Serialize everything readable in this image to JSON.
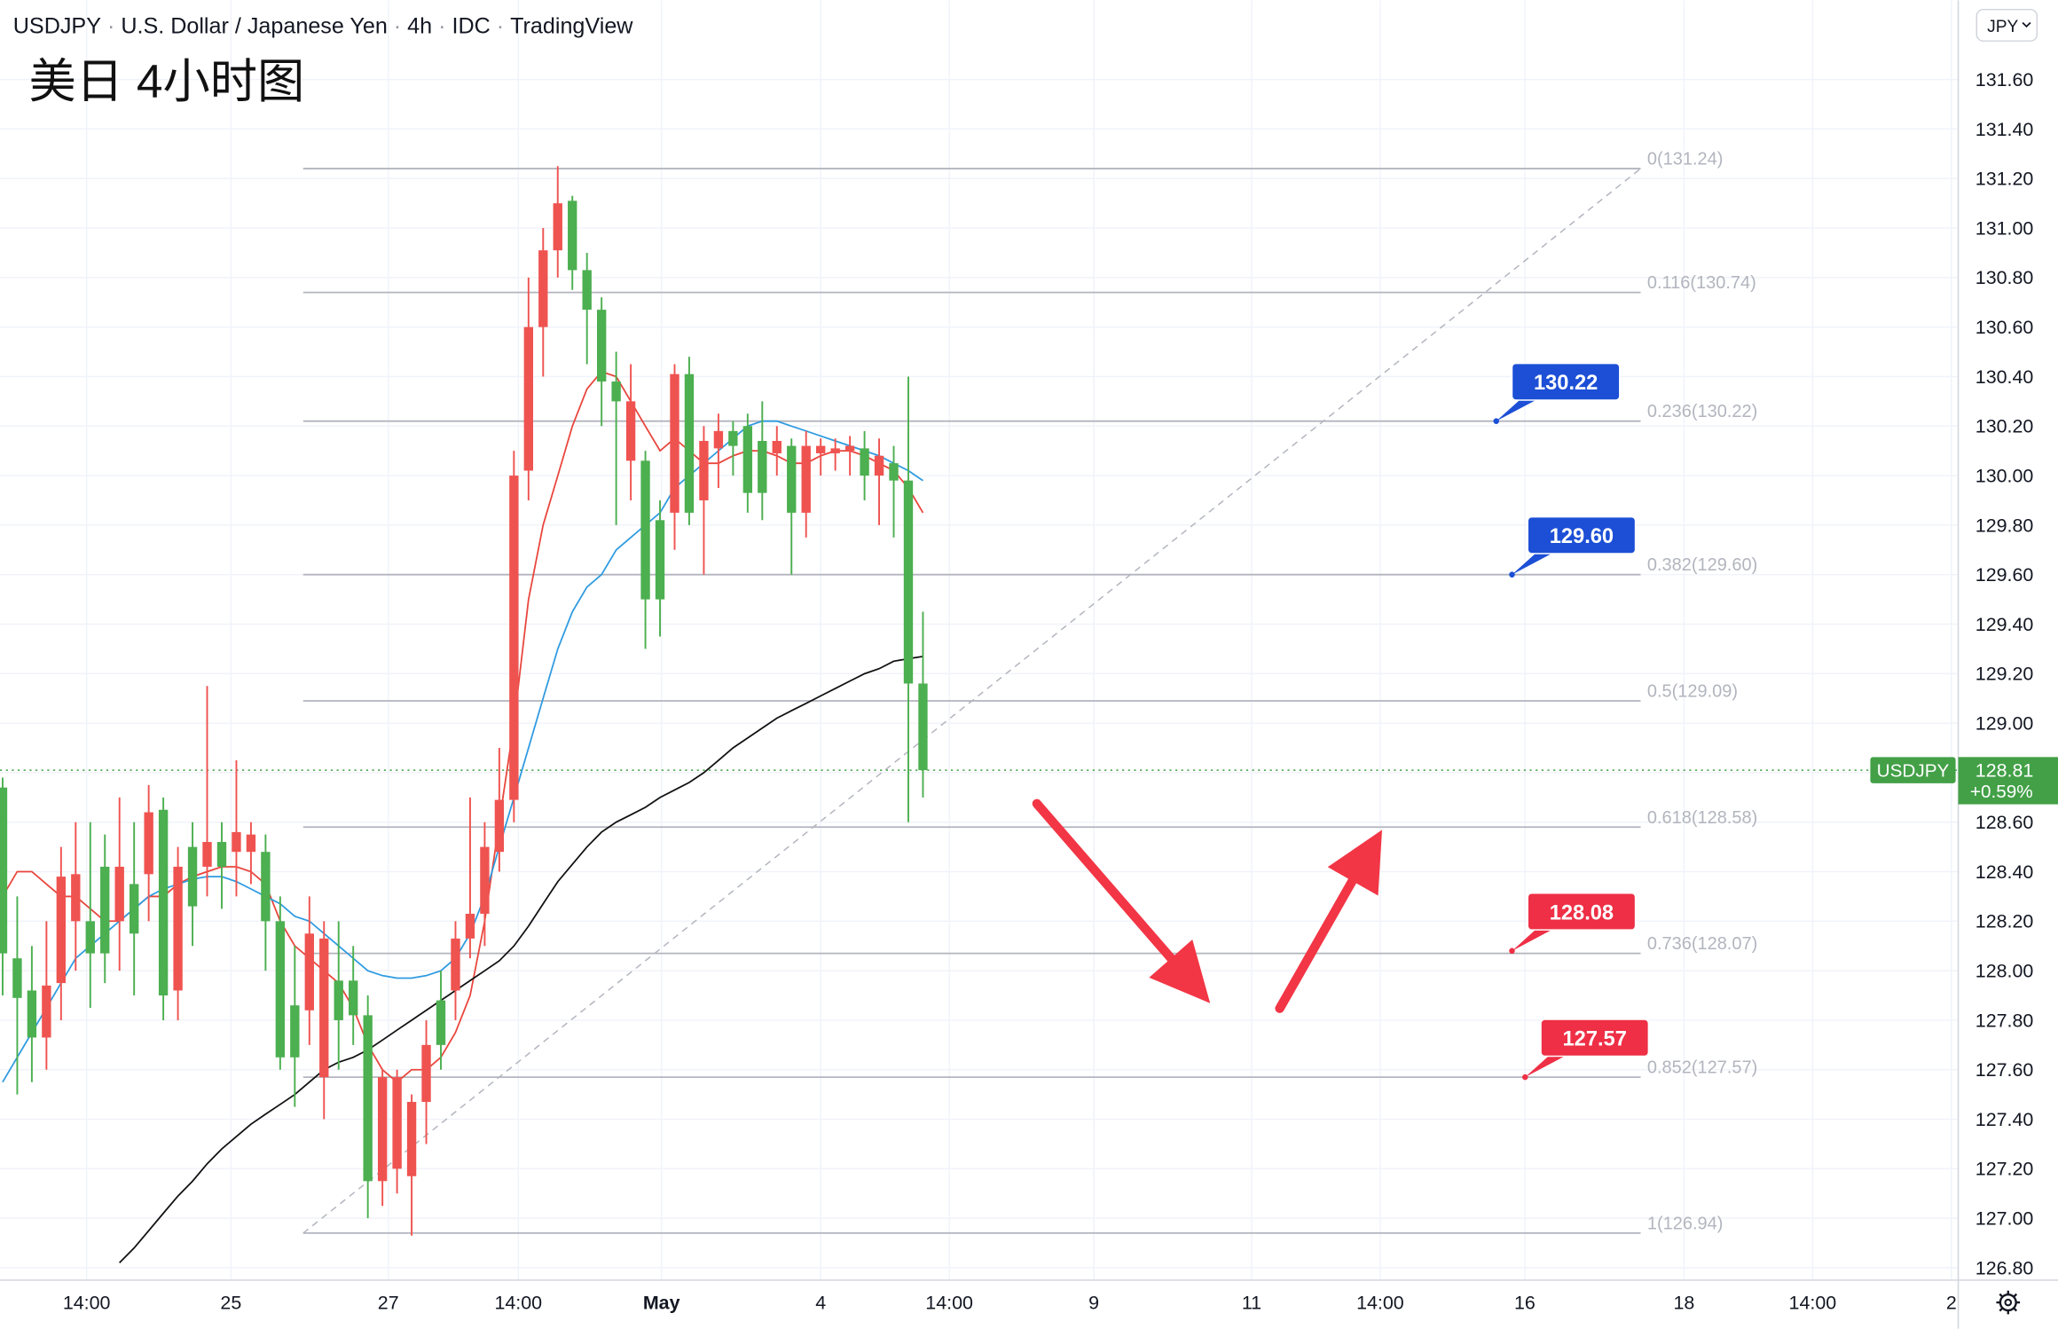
{
  "header": {
    "symbol": "USDJPY",
    "name": "U.S. Dollar / Japanese Yen",
    "interval": "4h",
    "source": "IDC",
    "platform": "TradingView",
    "currency": "JPY"
  },
  "chart_data": {
    "type": "candlestick",
    "title": "美日 4小时图",
    "up_color": "#ef5350",
    "down_color": "#4caf50",
    "open": [
      128.74,
      128.05,
      127.92,
      127.73,
      127.95,
      128.2,
      128.2,
      128.42,
      128.2,
      128.35,
      128.39,
      128.65,
      127.92,
      128.5,
      128.42,
      128.52,
      128.48,
      128.48,
      128.48,
      128.2,
      127.86,
      127.84,
      127.57,
      127.96,
      127.96,
      127.82,
      127.15,
      127.2,
      127.17,
      127.47,
      127.88,
      127.92,
      128.13,
      128.23,
      128.48,
      128.69,
      130.02,
      130.6,
      130.91,
      131.11,
      130.83,
      130.67,
      130.38,
      130.06,
      130.06,
      129.82,
      129.85,
      130.41,
      129.9,
      130.11,
      130.18,
      130.2,
      130.14,
      130.09,
      130.12,
      129.85,
      130.09,
      130.09,
      130.1,
      130.11,
      130.0,
      130.05,
      129.98,
      129.16
    ],
    "high": [
      128.78,
      128.3,
      128.1,
      128.2,
      128.5,
      128.6,
      128.6,
      128.55,
      128.7,
      128.6,
      128.75,
      128.7,
      128.5,
      128.6,
      129.15,
      128.6,
      128.85,
      128.6,
      128.55,
      128.3,
      128.1,
      128.3,
      128.2,
      128.2,
      128.1,
      127.9,
      127.6,
      127.6,
      127.5,
      127.8,
      128.0,
      128.2,
      128.7,
      128.6,
      128.9,
      130.1,
      130.8,
      131.0,
      131.25,
      131.13,
      130.9,
      130.72,
      130.5,
      130.45,
      130.1,
      129.9,
      130.45,
      130.48,
      130.2,
      130.25,
      130.22,
      130.25,
      130.3,
      130.2,
      130.15,
      130.18,
      130.15,
      130.15,
      130.16,
      130.18,
      130.15,
      130.12,
      130.4,
      129.45
    ],
    "low": [
      127.9,
      127.5,
      127.55,
      127.6,
      127.8,
      128.0,
      127.85,
      127.95,
      128.0,
      127.9,
      128.2,
      127.8,
      127.8,
      128.1,
      128.3,
      128.25,
      128.3,
      128.35,
      128.0,
      127.6,
      127.45,
      127.7,
      127.4,
      127.6,
      127.7,
      127.0,
      127.05,
      127.1,
      126.93,
      127.3,
      127.6,
      127.8,
      128.05,
      128.1,
      128.4,
      128.6,
      129.9,
      130.4,
      130.8,
      130.75,
      130.45,
      130.2,
      129.8,
      129.9,
      129.3,
      129.35,
      129.7,
      129.8,
      129.6,
      129.95,
      130.0,
      129.85,
      129.82,
      130.0,
      129.6,
      129.75,
      130.0,
      130.02,
      130.0,
      129.9,
      129.8,
      129.75,
      128.6,
      128.7
    ],
    "close": [
      128.07,
      127.89,
      127.73,
      127.94,
      128.38,
      128.39,
      128.07,
      128.07,
      128.42,
      128.15,
      128.64,
      127.9,
      128.42,
      128.26,
      128.52,
      128.42,
      128.56,
      128.55,
      128.2,
      127.65,
      127.65,
      128.15,
      128.13,
      127.8,
      127.82,
      127.15,
      127.57,
      127.57,
      127.47,
      127.7,
      127.7,
      128.13,
      128.23,
      128.5,
      128.69,
      130.0,
      130.6,
      130.91,
      131.1,
      130.83,
      130.67,
      130.38,
      130.3,
      130.3,
      129.5,
      129.5,
      130.41,
      129.85,
      130.14,
      130.18,
      130.12,
      129.93,
      129.93,
      130.14,
      129.85,
      130.12,
      130.12,
      130.11,
      130.12,
      130.0,
      130.08,
      129.98,
      129.16,
      128.81
    ],
    "moving_averages": [
      {
        "color": "#e8453c",
        "values": [
          128.3,
          128.4,
          128.4,
          128.35,
          128.3,
          128.3,
          128.25,
          128.2,
          128.2,
          128.25,
          128.3,
          128.3,
          128.35,
          128.38,
          128.4,
          128.42,
          128.42,
          128.4,
          128.35,
          128.2,
          128.1,
          128.05,
          128.0,
          127.95,
          127.85,
          127.7,
          127.6,
          127.55,
          127.6,
          127.6,
          127.65,
          127.75,
          127.9,
          128.2,
          128.6,
          129.0,
          129.5,
          129.8,
          130.0,
          130.2,
          130.35,
          130.42,
          130.4,
          130.3,
          130.2,
          130.1,
          130.15,
          130.1,
          130.05,
          130.05,
          130.08,
          130.1,
          130.1,
          130.08,
          130.05,
          130.05,
          130.08,
          130.1,
          130.1,
          130.08,
          130.05,
          130.02,
          129.95,
          129.85
        ]
      },
      {
        "color": "#2f9be0",
        "values": [
          127.55,
          127.65,
          127.75,
          127.85,
          127.95,
          128.05,
          128.1,
          128.15,
          128.2,
          128.25,
          128.3,
          128.33,
          128.35,
          128.37,
          128.38,
          128.38,
          128.36,
          128.33,
          128.3,
          128.27,
          128.22,
          128.2,
          128.15,
          128.1,
          128.05,
          128.0,
          127.98,
          127.97,
          127.97,
          127.98,
          128.0,
          128.05,
          128.15,
          128.3,
          128.5,
          128.7,
          128.9,
          129.1,
          129.3,
          129.45,
          129.55,
          129.6,
          129.7,
          129.75,
          129.8,
          129.85,
          129.95,
          130.0,
          130.05,
          130.1,
          130.15,
          130.2,
          130.22,
          130.22,
          130.2,
          130.18,
          130.16,
          130.14,
          130.12,
          130.1,
          130.08,
          130.05,
          130.02,
          129.98
        ]
      },
      {
        "color": "#111111",
        "values": [
          null,
          null,
          null,
          null,
          null,
          null,
          null,
          null,
          126.82,
          126.88,
          126.95,
          127.02,
          127.09,
          127.15,
          127.22,
          127.28,
          127.33,
          127.38,
          127.42,
          127.46,
          127.5,
          127.55,
          127.6,
          127.63,
          127.65,
          127.68,
          127.72,
          127.76,
          127.8,
          127.84,
          127.88,
          127.92,
          127.96,
          128.0,
          128.04,
          128.1,
          128.18,
          128.27,
          128.36,
          128.43,
          128.5,
          128.56,
          128.6,
          128.63,
          128.66,
          128.7,
          128.73,
          128.76,
          128.8,
          128.85,
          128.9,
          128.94,
          128.98,
          129.02,
          129.05,
          129.08,
          129.11,
          129.14,
          129.17,
          129.2,
          129.22,
          129.25,
          129.26,
          129.27
        ]
      }
    ],
    "fib_color": "#b2b5be",
    "fib_levels": [
      {
        "value": 131.24,
        "label": "0(131.24)"
      },
      {
        "value": 130.74,
        "label": "0.116(130.74)"
      },
      {
        "value": 130.22,
        "label": "0.236(130.22)"
      },
      {
        "value": 129.6,
        "label": "0.382(129.60)"
      },
      {
        "value": 129.09,
        "label": "0.5(129.09)"
      },
      {
        "value": 128.58,
        "label": "0.618(128.58)"
      },
      {
        "value": 128.07,
        "label": "0.736(128.07)"
      },
      {
        "value": 127.57,
        "label": "0.852(127.57)"
      },
      {
        "value": 126.94,
        "label": "1(126.94)"
      }
    ],
    "callouts": [
      {
        "value": 130.22,
        "color": "#1c4fd6"
      },
      {
        "value": 129.6,
        "label": "129.60",
        "color": "#1c4fd6"
      },
      {
        "value": 128.08,
        "color": "#ee2f45"
      },
      {
        "value": 127.57,
        "color": "#ee2f45"
      }
    ],
    "last_price": {
      "name": "USDJPY",
      "value": 128.81,
      "change": "+0.59%",
      "color": "#43a047"
    },
    "xlim": [
      -0.18,
      133.87
    ],
    "xticks": [
      {
        "value": 5.75,
        "label": "14:00"
      },
      {
        "value": 15.63,
        "label": "25"
      },
      {
        "value": 26.4,
        "label": "27"
      },
      {
        "value": 35.3,
        "label": "14:00"
      },
      {
        "value": 45.1,
        "label": "May"
      },
      {
        "value": 56.0,
        "label": "4"
      },
      {
        "value": 64.8,
        "label": "14:00"
      },
      {
        "value": 74.7,
        "label": "9"
      },
      {
        "value": 85.5,
        "label": "11"
      },
      {
        "value": 94.3,
        "label": "14:00"
      },
      {
        "value": 104.2,
        "label": "16"
      },
      {
        "value": 115.1,
        "label": "18"
      },
      {
        "value": 123.9,
        "label": "14:00"
      },
      {
        "value": 133.4,
        "label": "2"
      }
    ],
    "ylim": [
      126.75,
      131.92
    ],
    "yticks": [
      {
        "value": 126.8,
        "label": "126.80"
      },
      {
        "value": 127.0,
        "label": "127.00"
      },
      {
        "value": 127.2,
        "label": "127.20"
      },
      {
        "value": 127.4,
        "label": "127.40"
      },
      {
        "value": 127.6,
        "label": "127.60"
      },
      {
        "value": 127.8,
        "label": "127.80"
      },
      {
        "value": 128.0,
        "label": "128.00"
      },
      {
        "value": 128.2,
        "label": "128.20"
      },
      {
        "value": 128.4,
        "label": "128.40"
      },
      {
        "value": 128.6,
        "label": "128.60"
      },
      {
        "value": 128.8,
        "label": "128.80"
      },
      {
        "value": 129.0,
        "label": "129.00"
      },
      {
        "value": 129.2,
        "label": "129.20"
      },
      {
        "value": 129.4,
        "label": "129.40"
      },
      {
        "value": 129.6,
        "label": "129.60"
      },
      {
        "value": 129.8,
        "label": "129.80"
      },
      {
        "value": 130.0,
        "label": "130.00"
      },
      {
        "value": 130.2,
        "label": "130.20"
      },
      {
        "value": 130.4,
        "label": "130.40"
      },
      {
        "value": 130.6,
        "label": "130.60"
      },
      {
        "value": 130.8,
        "label": "130.80"
      },
      {
        "value": 131.0,
        "label": "131.00"
      },
      {
        "value": 131.2,
        "label": "131.20"
      },
      {
        "value": 131.4,
        "label": "131.40"
      },
      {
        "value": 131.6,
        "label": "131.60"
      }
    ],
    "grid": true
  }
}
